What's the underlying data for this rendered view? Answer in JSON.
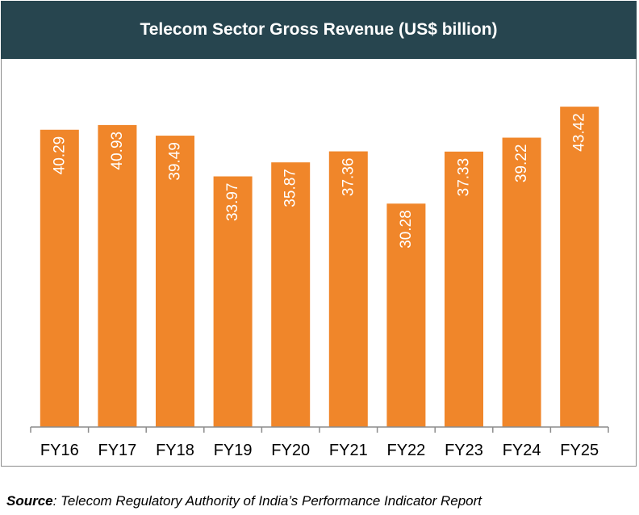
{
  "chart_data": {
    "type": "bar",
    "title": "Telecom Sector Gross Revenue (US$ billion)",
    "categories": [
      "FY16",
      "FY17",
      "FY18",
      "FY19",
      "FY20",
      "FY21",
      "FY22",
      "FY23",
      "FY24",
      "FY25"
    ],
    "values": [
      40.29,
      40.93,
      39.49,
      33.97,
      35.87,
      37.36,
      30.28,
      37.33,
      39.22,
      43.42
    ],
    "xlabel": "",
    "ylabel": "",
    "ylim": [
      0,
      50
    ],
    "grid": false,
    "legend": "none",
    "bar_color": "#f0862a",
    "label_color": "#ffffff",
    "title_bg": "#27454f"
  },
  "source": {
    "label": "Source",
    "text": ": Telecom Regulatory Authority of India’s Performance Indicator Report"
  }
}
